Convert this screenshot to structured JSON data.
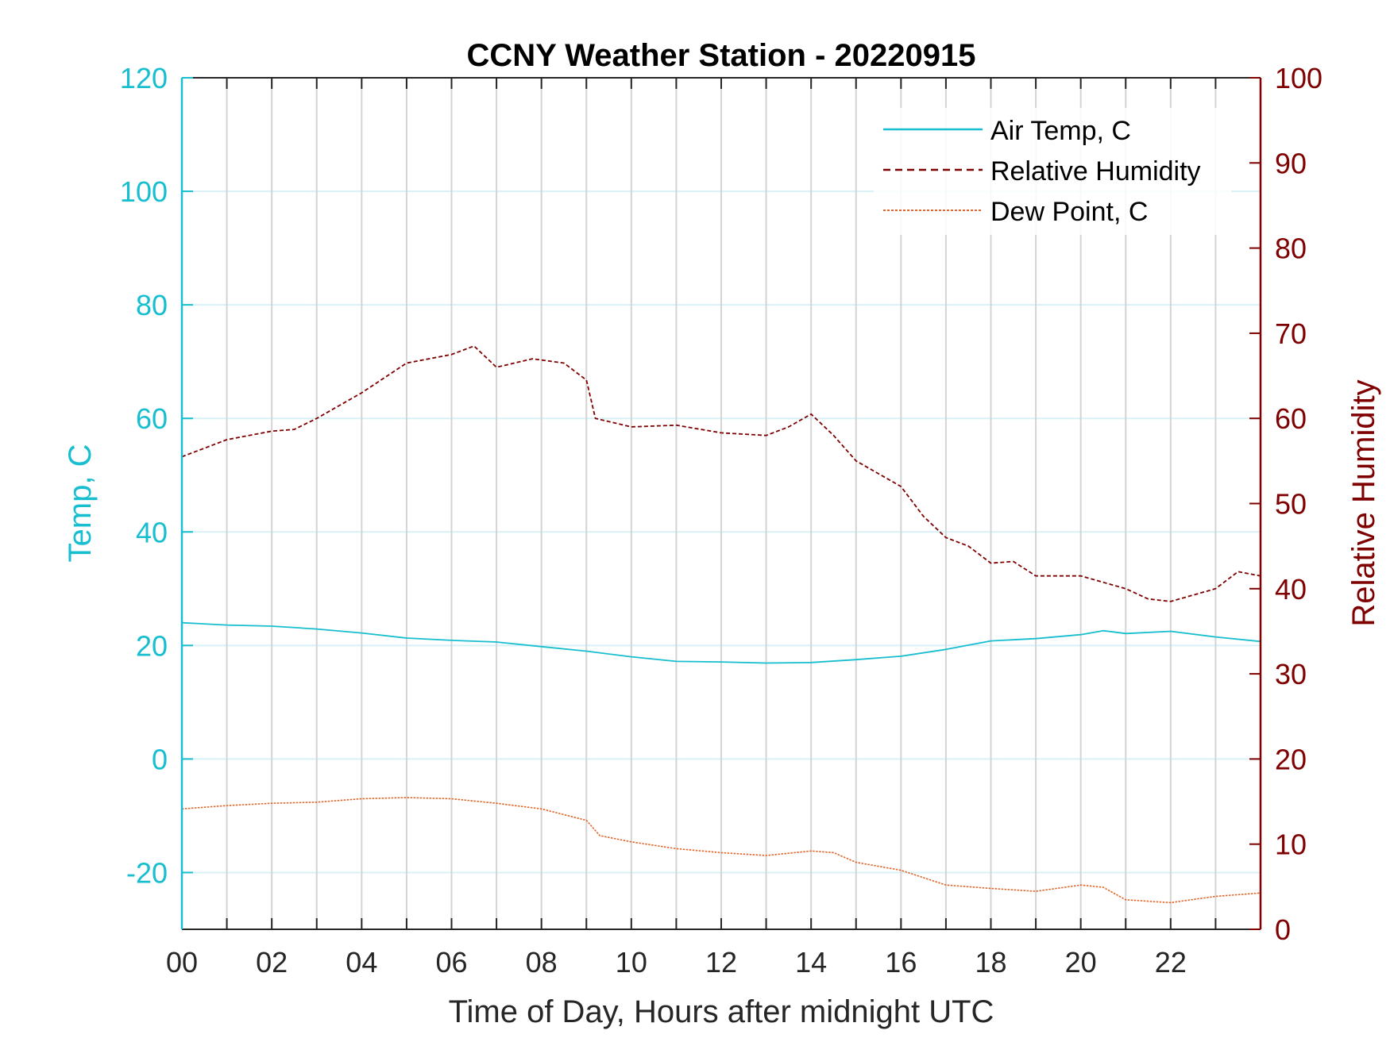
{
  "colors": {
    "temp_axis": "#17becf",
    "rh_axis": "#7f0000",
    "dew": "#e0662a",
    "grid": "#d4d4d4",
    "hgrid": "#d8f1f6",
    "box": "#262626"
  },
  "chart_data": {
    "type": "line",
    "title": "CCNY Weather Station - 20220915",
    "xlabel": "Time of Day, Hours after midnight UTC",
    "ylabel_left": "Temp, C",
    "ylabel_right": "Relative Humidity",
    "xlim": [
      0,
      24
    ],
    "ylim_left": [
      -30,
      120
    ],
    "ylim_right": [
      0,
      100
    ],
    "x_ticks": [
      0,
      2,
      4,
      6,
      8,
      10,
      12,
      14,
      16,
      18,
      20,
      22
    ],
    "x_tick_labels": [
      "00",
      "02",
      "04",
      "06",
      "08",
      "10",
      "12",
      "14",
      "16",
      "18",
      "20",
      "22"
    ],
    "x_grid_hours": [
      1,
      2,
      3,
      4,
      5,
      6,
      7,
      8,
      9,
      10,
      11,
      12,
      13,
      14,
      15,
      16,
      17,
      18,
      19,
      20,
      21,
      22,
      23
    ],
    "y_ticks_left": [
      -20,
      0,
      20,
      40,
      60,
      80,
      100,
      120
    ],
    "y_tick_labels_left": [
      "-20",
      "0",
      "20",
      "40",
      "60",
      "80",
      "100",
      "120"
    ],
    "y_ticks_right": [
      0,
      10,
      20,
      30,
      40,
      50,
      60,
      70,
      80,
      90,
      100
    ],
    "y_tick_labels_right": [
      "0",
      "10",
      "20",
      "30",
      "40",
      "50",
      "60",
      "70",
      "80",
      "90",
      "100"
    ],
    "legend_position": "top-right",
    "series": [
      {
        "name": "Air Temp, C",
        "axis": "left",
        "style": "solid",
        "x": [
          0,
          1,
          2,
          3,
          4,
          5,
          6,
          7,
          8,
          9,
          10,
          11,
          12,
          13,
          14,
          15,
          16,
          17,
          18,
          19,
          20,
          20.5,
          21,
          22,
          23,
          24
        ],
        "y": [
          24,
          23.6,
          23.4,
          22.9,
          22.2,
          21.3,
          20.9,
          20.6,
          19.8,
          19,
          18,
          17.2,
          17.1,
          16.9,
          17,
          17.5,
          18.1,
          19.3,
          20.8,
          21.2,
          21.9,
          22.6,
          22.1,
          22.5,
          21.5,
          20.7
        ]
      },
      {
        "name": "Relative Humidity",
        "axis": "right",
        "style": "dashed",
        "x": [
          0,
          0.5,
          1,
          2,
          2.5,
          3,
          4,
          5,
          6,
          6.5,
          7,
          7.8,
          8.5,
          9,
          9.2,
          10,
          11,
          12,
          13,
          13.5,
          14,
          14.5,
          15,
          16,
          16.5,
          17,
          17.5,
          18,
          18.5,
          19,
          20,
          21,
          21.5,
          22,
          23,
          23.5,
          24
        ],
        "y": [
          55.5,
          56.5,
          57.5,
          58.5,
          58.7,
          60,
          63,
          66.5,
          67.5,
          68.5,
          66,
          67,
          66.5,
          64.5,
          60,
          59,
          59.2,
          58.3,
          58,
          59,
          60.5,
          58,
          55,
          52,
          48.5,
          46,
          45,
          43,
          43.2,
          41.5,
          41.5,
          40,
          38.8,
          38.5,
          40,
          42,
          41.5
        ]
      },
      {
        "name": "Dew Point, C",
        "axis": "left",
        "style": "dotted",
        "x": [
          0,
          1,
          2,
          3,
          4,
          5,
          6,
          7,
          8,
          9,
          9.3,
          10,
          11,
          12,
          13,
          14,
          14.5,
          15,
          16,
          17,
          18,
          19,
          20,
          20.5,
          21,
          22,
          23,
          24
        ],
        "y": [
          -8.8,
          -8.2,
          -7.8,
          -7.6,
          -7,
          -6.8,
          -7,
          -7.8,
          -8.8,
          -10.8,
          -13.5,
          -14.6,
          -15.8,
          -16.5,
          -17,
          -16.2,
          -16.5,
          -18.2,
          -19.6,
          -22.2,
          -22.8,
          -23.3,
          -22.2,
          -22.6,
          -24.8,
          -25.3,
          -24.2,
          -23.6
        ]
      }
    ]
  }
}
